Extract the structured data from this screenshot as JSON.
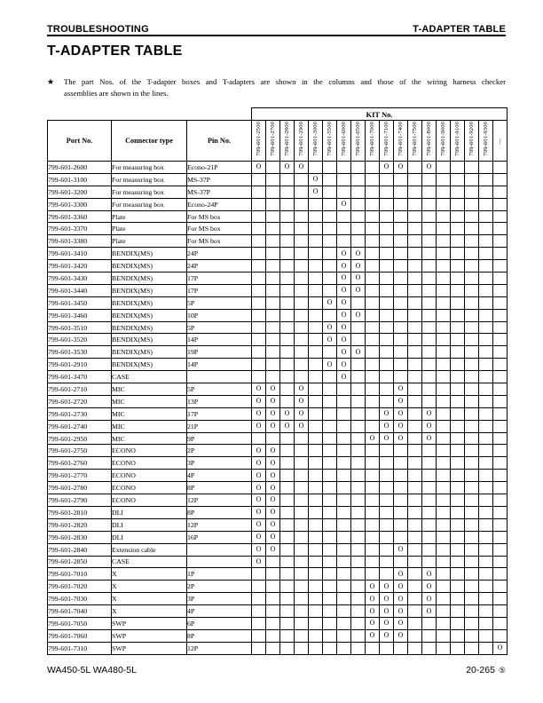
{
  "page": {
    "header_left": "TROUBLESHOOTING",
    "header_right": "T-ADAPTER TABLE",
    "title": "T-ADAPTER TABLE",
    "note": {
      "star": "★",
      "line1": "The part Nos. of the T-adapter boxes and T-adapters are shown in the columns and those of the wiring harness checker",
      "line2": "assemblies are shown in the lines."
    },
    "footer_left": "WA450-5L WA480-5L",
    "footer_right": "20-265",
    "footer_circle": "⑤"
  },
  "table": {
    "kit_header": "KIT No.",
    "col_headers": [
      "Port No.",
      "Connector type",
      "Pin No."
    ],
    "mark": "O",
    "kit_columns": [
      "799-601-2500",
      "799-601-2700",
      "799-601-2800",
      "799-601-2900",
      "799-601-3000",
      "799-601-5500",
      "799-601-6000",
      "799-601-6500",
      "799-601-7000",
      "799-601-7100",
      "799-601-7400",
      "799-601-7500",
      "799-601-8000",
      "799-601-9000",
      "799-601-9100",
      "799-601-9200",
      "799-601-9300",
      "—"
    ],
    "rows": [
      {
        "port": "799-601-2600",
        "connector": "For measuring box",
        "pin": "Econo-21P",
        "kits": [
          "799-601-2500",
          "799-601-2800",
          "799-601-2900",
          "799-601-7100",
          "799-601-7400",
          "799-601-8000"
        ]
      },
      {
        "port": "799-601-3100",
        "connector": "For measuring box",
        "pin": "MS-37P",
        "kits": [
          "799-601-3000"
        ]
      },
      {
        "port": "799-601-3200",
        "connector": "For measuring box",
        "pin": "MS-37P",
        "kits": [
          "799-601-3000"
        ]
      },
      {
        "port": "799-601-3300",
        "connector": "For measuring box",
        "pin": "Econo-24P",
        "kits": [
          "799-601-6000"
        ]
      },
      {
        "port": "799-601-3360",
        "connector": "Plate",
        "pin": "For MS box",
        "kits": []
      },
      {
        "port": "799-601-3370",
        "connector": "Plate",
        "pin": "For MS box",
        "kits": []
      },
      {
        "port": "799-601-3380",
        "connector": "Plate",
        "pin": "For MS box",
        "kits": []
      },
      {
        "port": "799-601-3410",
        "connector": "BENDIX(MS)",
        "pin": "24P",
        "kits": [
          "799-601-6000",
          "799-601-6500"
        ]
      },
      {
        "port": "799-601-3420",
        "connector": "BENDIX(MS)",
        "pin": "24P",
        "kits": [
          "799-601-6000",
          "799-601-6500"
        ]
      },
      {
        "port": "799-601-3430",
        "connector": "BENDIX(MS)",
        "pin": "17P",
        "kits": [
          "799-601-6000",
          "799-601-6500"
        ]
      },
      {
        "port": "799-601-3440",
        "connector": "BENDIX(MS)",
        "pin": "17P",
        "kits": [
          "799-601-6000",
          "799-601-6500"
        ]
      },
      {
        "port": "799-601-3450",
        "connector": "BENDIX(MS)",
        "pin": "5P",
        "kits": [
          "799-601-5500",
          "799-601-6000"
        ]
      },
      {
        "port": "799-601-3460",
        "connector": "BENDIX(MS)",
        "pin": "10P",
        "kits": [
          "799-601-6000",
          "799-601-6500"
        ]
      },
      {
        "port": "799-601-3510",
        "connector": "BENDIX(MS)",
        "pin": "5P",
        "kits": [
          "799-601-5500",
          "799-601-6000"
        ]
      },
      {
        "port": "799-601-3520",
        "connector": "BENDIX(MS)",
        "pin": "14P",
        "kits": [
          "799-601-5500",
          "799-601-6000"
        ]
      },
      {
        "port": "799-601-3530",
        "connector": "BENDIX(MS)",
        "pin": "19P",
        "kits": [
          "799-601-6000",
          "799-601-6500"
        ]
      },
      {
        "port": "799-601-2910",
        "connector": "BENDIX(MS)",
        "pin": "14P",
        "kits": [
          "799-601-5500",
          "799-601-6000"
        ]
      },
      {
        "port": "799-601-3470",
        "connector": "CASE",
        "pin": "",
        "kits": [
          "799-601-6000"
        ]
      },
      {
        "port": "799-601-2710",
        "connector": "MIC",
        "pin": "5P",
        "kits": [
          "799-601-2500",
          "799-601-2700",
          "799-601-2900",
          "799-601-7400"
        ]
      },
      {
        "port": "799-601-2720",
        "connector": "MIC",
        "pin": "13P",
        "kits": [
          "799-601-2500",
          "799-601-2700",
          "799-601-2900",
          "799-601-7400"
        ]
      },
      {
        "port": "799-601-2730",
        "connector": "MIC",
        "pin": "17P",
        "kits": [
          "799-601-2500",
          "799-601-2700",
          "799-601-2800",
          "799-601-2900",
          "799-601-7100",
          "799-601-7400",
          "799-601-8000"
        ]
      },
      {
        "port": "799-601-2740",
        "connector": "MIC",
        "pin": "21P",
        "kits": [
          "799-601-2500",
          "799-601-2700",
          "799-601-2800",
          "799-601-2900",
          "799-601-7100",
          "799-601-7400",
          "799-601-8000"
        ]
      },
      {
        "port": "799-601-2950",
        "connector": "MIC",
        "pin": "9P",
        "kits": [
          "799-601-7000",
          "799-601-7100",
          "799-601-7400",
          "799-601-8000"
        ]
      },
      {
        "port": "799-601-2750",
        "connector": "ECONO",
        "pin": "2P",
        "kits": [
          "799-601-2500",
          "799-601-2700"
        ]
      },
      {
        "port": "799-601-2760",
        "connector": "ECONO",
        "pin": "3P",
        "kits": [
          "799-601-2500",
          "799-601-2700"
        ]
      },
      {
        "port": "799-601-2770",
        "connector": "ECONO",
        "pin": "4P",
        "kits": [
          "799-601-2500",
          "799-601-2700"
        ]
      },
      {
        "port": "799-601-2780",
        "connector": "ECONO",
        "pin": "8P",
        "kits": [
          "799-601-2500",
          "799-601-2700"
        ]
      },
      {
        "port": "799-601-2790",
        "connector": "ECONO",
        "pin": "12P",
        "kits": [
          "799-601-2500",
          "799-601-2700"
        ]
      },
      {
        "port": "799-601-2810",
        "connector": "DLI",
        "pin": "8P",
        "kits": [
          "799-601-2500",
          "799-601-2700"
        ]
      },
      {
        "port": "799-601-2820",
        "connector": "DLI",
        "pin": "12P",
        "kits": [
          "799-601-2500",
          "799-601-2700"
        ]
      },
      {
        "port": "799-601-2830",
        "connector": "DLI",
        "pin": "16P",
        "kits": [
          "799-601-2500",
          "799-601-2700"
        ]
      },
      {
        "port": "799-601-2840",
        "connector": "Extension cable",
        "pin": "",
        "kits": [
          "799-601-2500",
          "799-601-2700",
          "799-601-7400"
        ]
      },
      {
        "port": "799-601-2850",
        "connector": "CASE",
        "pin": "",
        "kits": [
          "799-601-2500"
        ]
      },
      {
        "port": "799-601-7010",
        "connector": "X",
        "pin": "1P",
        "kits": [
          "799-601-7400",
          "799-601-8000"
        ]
      },
      {
        "port": "799-601-7020",
        "connector": "X",
        "pin": "2P",
        "kits": [
          "799-601-7000",
          "799-601-7100",
          "799-601-7400",
          "799-601-8000"
        ]
      },
      {
        "port": "799-601-7030",
        "connector": "X",
        "pin": "3P",
        "kits": [
          "799-601-7000",
          "799-601-7100",
          "799-601-7400",
          "799-601-8000"
        ]
      },
      {
        "port": "799-601-7040",
        "connector": "X",
        "pin": "4P",
        "kits": [
          "799-601-7000",
          "799-601-7100",
          "799-601-7400",
          "799-601-8000"
        ]
      },
      {
        "port": "799-601-7050",
        "connector": "SWP",
        "pin": "6P",
        "kits": [
          "799-601-7000",
          "799-601-7100",
          "799-601-7400"
        ]
      },
      {
        "port": "799-601-7060",
        "connector": "SWP",
        "pin": "8P",
        "kits": [
          "799-601-7000",
          "799-601-7100",
          "799-601-7400"
        ]
      },
      {
        "port": "799-601-7310",
        "connector": "SWP",
        "pin": "12P",
        "kits": [
          "—"
        ]
      }
    ]
  }
}
